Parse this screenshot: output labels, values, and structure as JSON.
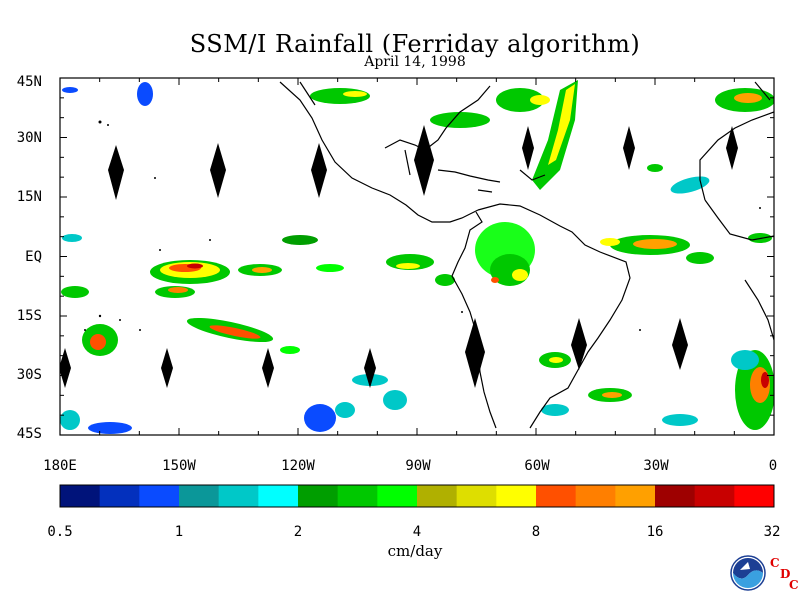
{
  "title": "SSM/I Rainfall (Ferriday algorithm)",
  "date": "April 14, 1998",
  "map": {
    "lat_labels": [
      "45N",
      "30N",
      "15N",
      "EQ",
      "15S",
      "30S",
      "45S"
    ],
    "lon_labels": [
      "180E",
      "150W",
      "120W",
      "90W",
      "60W",
      "30W",
      "0"
    ],
    "extent": {
      "lon_min": -180,
      "lon_max": 0,
      "lat_min": -45,
      "lat_max": 45
    }
  },
  "colorbar": {
    "tick_labels": [
      "0.5",
      "1",
      "2",
      "4",
      "8",
      "16",
      "32"
    ],
    "units": "cm/day",
    "colors": [
      "#00137a",
      "#0330bd",
      "#0a4bff",
      "#0b9799",
      "#00c8c8",
      "#00ffff",
      "#009e00",
      "#00c800",
      "#00ff00",
      "#b0b000",
      "#dede00",
      "#ffff00",
      "#ff5000",
      "#ff7f00",
      "#ffa000",
      "#9e0000",
      "#c80000",
      "#ff0000"
    ]
  },
  "logo": {
    "text": "NOAA",
    "cdc_letters": [
      "C",
      "D",
      "C"
    ]
  }
}
